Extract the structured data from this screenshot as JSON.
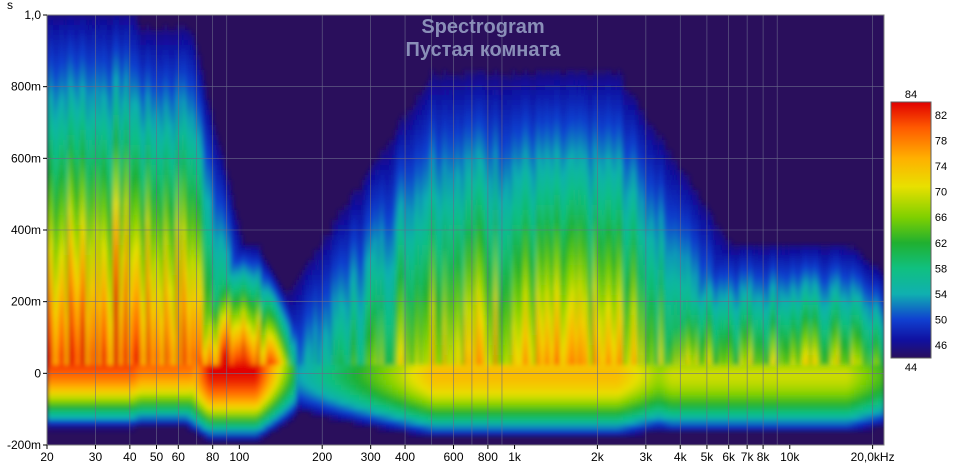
{
  "chart_data": {
    "type": "heatmap",
    "title": "Spectrogram",
    "subtitle": "Пустая комната",
    "ylabel": "s",
    "x_scale": "log",
    "xlim": [
      20,
      22000
    ],
    "ylim": [
      -0.2,
      1.0
    ],
    "x_ticks": [
      {
        "value": 20,
        "label": "20"
      },
      {
        "value": 30,
        "label": "30"
      },
      {
        "value": 40,
        "label": "40"
      },
      {
        "value": 50,
        "label": "50"
      },
      {
        "value": 60,
        "label": "60"
      },
      {
        "value": 80,
        "label": "80"
      },
      {
        "value": 100,
        "label": "100"
      },
      {
        "value": 200,
        "label": "200"
      },
      {
        "value": 300,
        "label": "300"
      },
      {
        "value": 400,
        "label": "400"
      },
      {
        "value": 600,
        "label": "600"
      },
      {
        "value": 800,
        "label": "800"
      },
      {
        "value": 1000,
        "label": "1k"
      },
      {
        "value": 2000,
        "label": "2k"
      },
      {
        "value": 3000,
        "label": "3k"
      },
      {
        "value": 4000,
        "label": "4k"
      },
      {
        "value": 5000,
        "label": "5k"
      },
      {
        "value": 6000,
        "label": "6k"
      },
      {
        "value": 7000,
        "label": "7k"
      },
      {
        "value": 8000,
        "label": "8k"
      },
      {
        "value": 10000,
        "label": "10k"
      },
      {
        "value": 20000,
        "label": "20,0kHz"
      }
    ],
    "y_ticks": [
      {
        "value": 1.0,
        "label": "1,0"
      },
      {
        "value": 0.8,
        "label": "800m"
      },
      {
        "value": 0.6,
        "label": "600m"
      },
      {
        "value": 0.4,
        "label": "400m"
      },
      {
        "value": 0.2,
        "label": "200m"
      },
      {
        "value": 0.0,
        "label": "0"
      },
      {
        "value": -0.2,
        "label": "-200m"
      }
    ],
    "colorbar": {
      "min": 44,
      "max": 84,
      "labels": [
        "84",
        "82",
        "78",
        "74",
        "70",
        "66",
        "62",
        "58",
        "54",
        "50",
        "46",
        "44"
      ],
      "label_values": [
        84,
        82,
        78,
        74,
        70,
        66,
        62,
        58,
        54,
        50,
        46,
        44
      ]
    },
    "background_color": "#2a0f5c",
    "grid": true,
    "regions": [
      {
        "f_low": 20,
        "f_high": 40,
        "t_peak": 0.05,
        "level": 82,
        "decay_s": 0.9
      },
      {
        "f_low": 45,
        "f_high": 60,
        "t_peak": 0.05,
        "level": 80,
        "decay_s": 0.9
      },
      {
        "f_low": 90,
        "f_high": 100,
        "t_peak": 0.02,
        "level": 84,
        "decay_s": 0.3
      },
      {
        "f_low": 400,
        "f_high": 3000,
        "t_peak": 0.0,
        "level": 74,
        "decay_s": 1.0
      },
      {
        "f_low": 3000,
        "f_high": 20000,
        "t_peak": 0.0,
        "level": 70,
        "decay_s": 0.5
      }
    ]
  }
}
